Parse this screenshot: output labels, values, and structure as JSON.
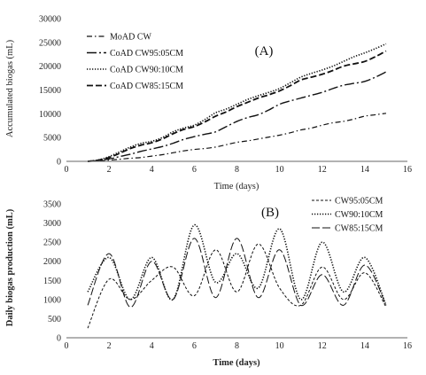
{
  "chart_data": [
    {
      "type": "line",
      "panel_label": "(A)",
      "xlabel": "Time (days)",
      "ylabel": "Accumulated biogas (mL)",
      "xlim": [
        0,
        16
      ],
      "ylim": [
        0,
        30000
      ],
      "xticks": [
        0,
        2,
        4,
        6,
        8,
        10,
        12,
        14,
        16
      ],
      "yticks": [
        0,
        5000,
        10000,
        15000,
        20000,
        25000,
        30000
      ],
      "grid": false,
      "legend_position": "top-left",
      "x": [
        1,
        1.5,
        2,
        2.5,
        3,
        3.5,
        4,
        4.5,
        5,
        5.5,
        6,
        6.5,
        7,
        7.5,
        8,
        8.5,
        9,
        9.5,
        10,
        10.5,
        11,
        11.5,
        12,
        12.5,
        13,
        13.5,
        14,
        14.5,
        15
      ],
      "series": [
        {
          "name": "MoAD CW",
          "dash": "dashdot",
          "values": [
            0,
            100,
            250,
            450,
            650,
            800,
            1100,
            1400,
            1800,
            2200,
            2500,
            2700,
            3000,
            3500,
            4000,
            4300,
            4700,
            5100,
            5500,
            6000,
            6600,
            7000,
            7600,
            8100,
            8400,
            8900,
            9500,
            9800,
            10100
          ]
        },
        {
          "name": "CoAD CW95:05CM",
          "dash": "longdashdot",
          "values": [
            0,
            200,
            500,
            1000,
            1500,
            2100,
            2600,
            3100,
            3800,
            4600,
            5200,
            5700,
            6200,
            7300,
            8400,
            9200,
            9800,
            10800,
            12000,
            12700,
            13300,
            13900,
            14500,
            15300,
            16000,
            16400,
            16800,
            17700,
            18800
          ]
        },
        {
          "name": "CoAD CW90:10CM",
          "dash": "dotted",
          "values": [
            0,
            300,
            1000,
            2000,
            3000,
            3800,
            4200,
            5000,
            6200,
            7000,
            7600,
            8800,
            10200,
            11000,
            12000,
            13000,
            13800,
            14500,
            15300,
            16500,
            17700,
            18500,
            19200,
            20000,
            21000,
            22000,
            22800,
            23700,
            24700
          ]
        },
        {
          "name": "CoAD CW85:15CM",
          "dash": "dashed",
          "values": [
            0,
            250,
            800,
            1700,
            2700,
            3400,
            3900,
            4700,
            5800,
            6700,
            7300,
            8300,
            9500,
            10400,
            11500,
            12400,
            13300,
            14000,
            14800,
            15900,
            17100,
            17700,
            18300,
            19100,
            20000,
            20500,
            21000,
            22000,
            23200
          ]
        }
      ]
    },
    {
      "type": "line",
      "panel_label": "(B)",
      "xlabel": "Time (days)",
      "ylabel": "Daily biogas production (mL)",
      "xlim": [
        0,
        16
      ],
      "ylim": [
        0,
        3500
      ],
      "xticks": [
        0,
        2,
        4,
        6,
        8,
        10,
        12,
        14,
        16
      ],
      "yticks": [
        0,
        500,
        1000,
        1500,
        2000,
        2500,
        3000,
        3500
      ],
      "grid": false,
      "legend_position": "top-right",
      "x": [
        1,
        2,
        3,
        4,
        5,
        6,
        7,
        8,
        9,
        10,
        11,
        12,
        13,
        14,
        15
      ],
      "series": [
        {
          "name": "CW95:05CM",
          "dash": "dashed-fine",
          "values": [
            250,
            1530,
            1000,
            1500,
            1850,
            1100,
            2300,
            1200,
            2450,
            1300,
            850,
            1850,
            1000,
            1700,
            800
          ]
        },
        {
          "name": "CW90:10CM",
          "dash": "dotted",
          "values": [
            1200,
            2100,
            1000,
            2100,
            1000,
            2950,
            1450,
            2200,
            1300,
            2850,
            1000,
            2500,
            1200,
            2100,
            850
          ]
        },
        {
          "name": "CW85:15CM",
          "dash": "longdash",
          "values": [
            850,
            2200,
            800,
            2000,
            1000,
            2600,
            1050,
            2600,
            1050,
            2300,
            850,
            1650,
            850,
            1900,
            850
          ]
        }
      ]
    }
  ]
}
